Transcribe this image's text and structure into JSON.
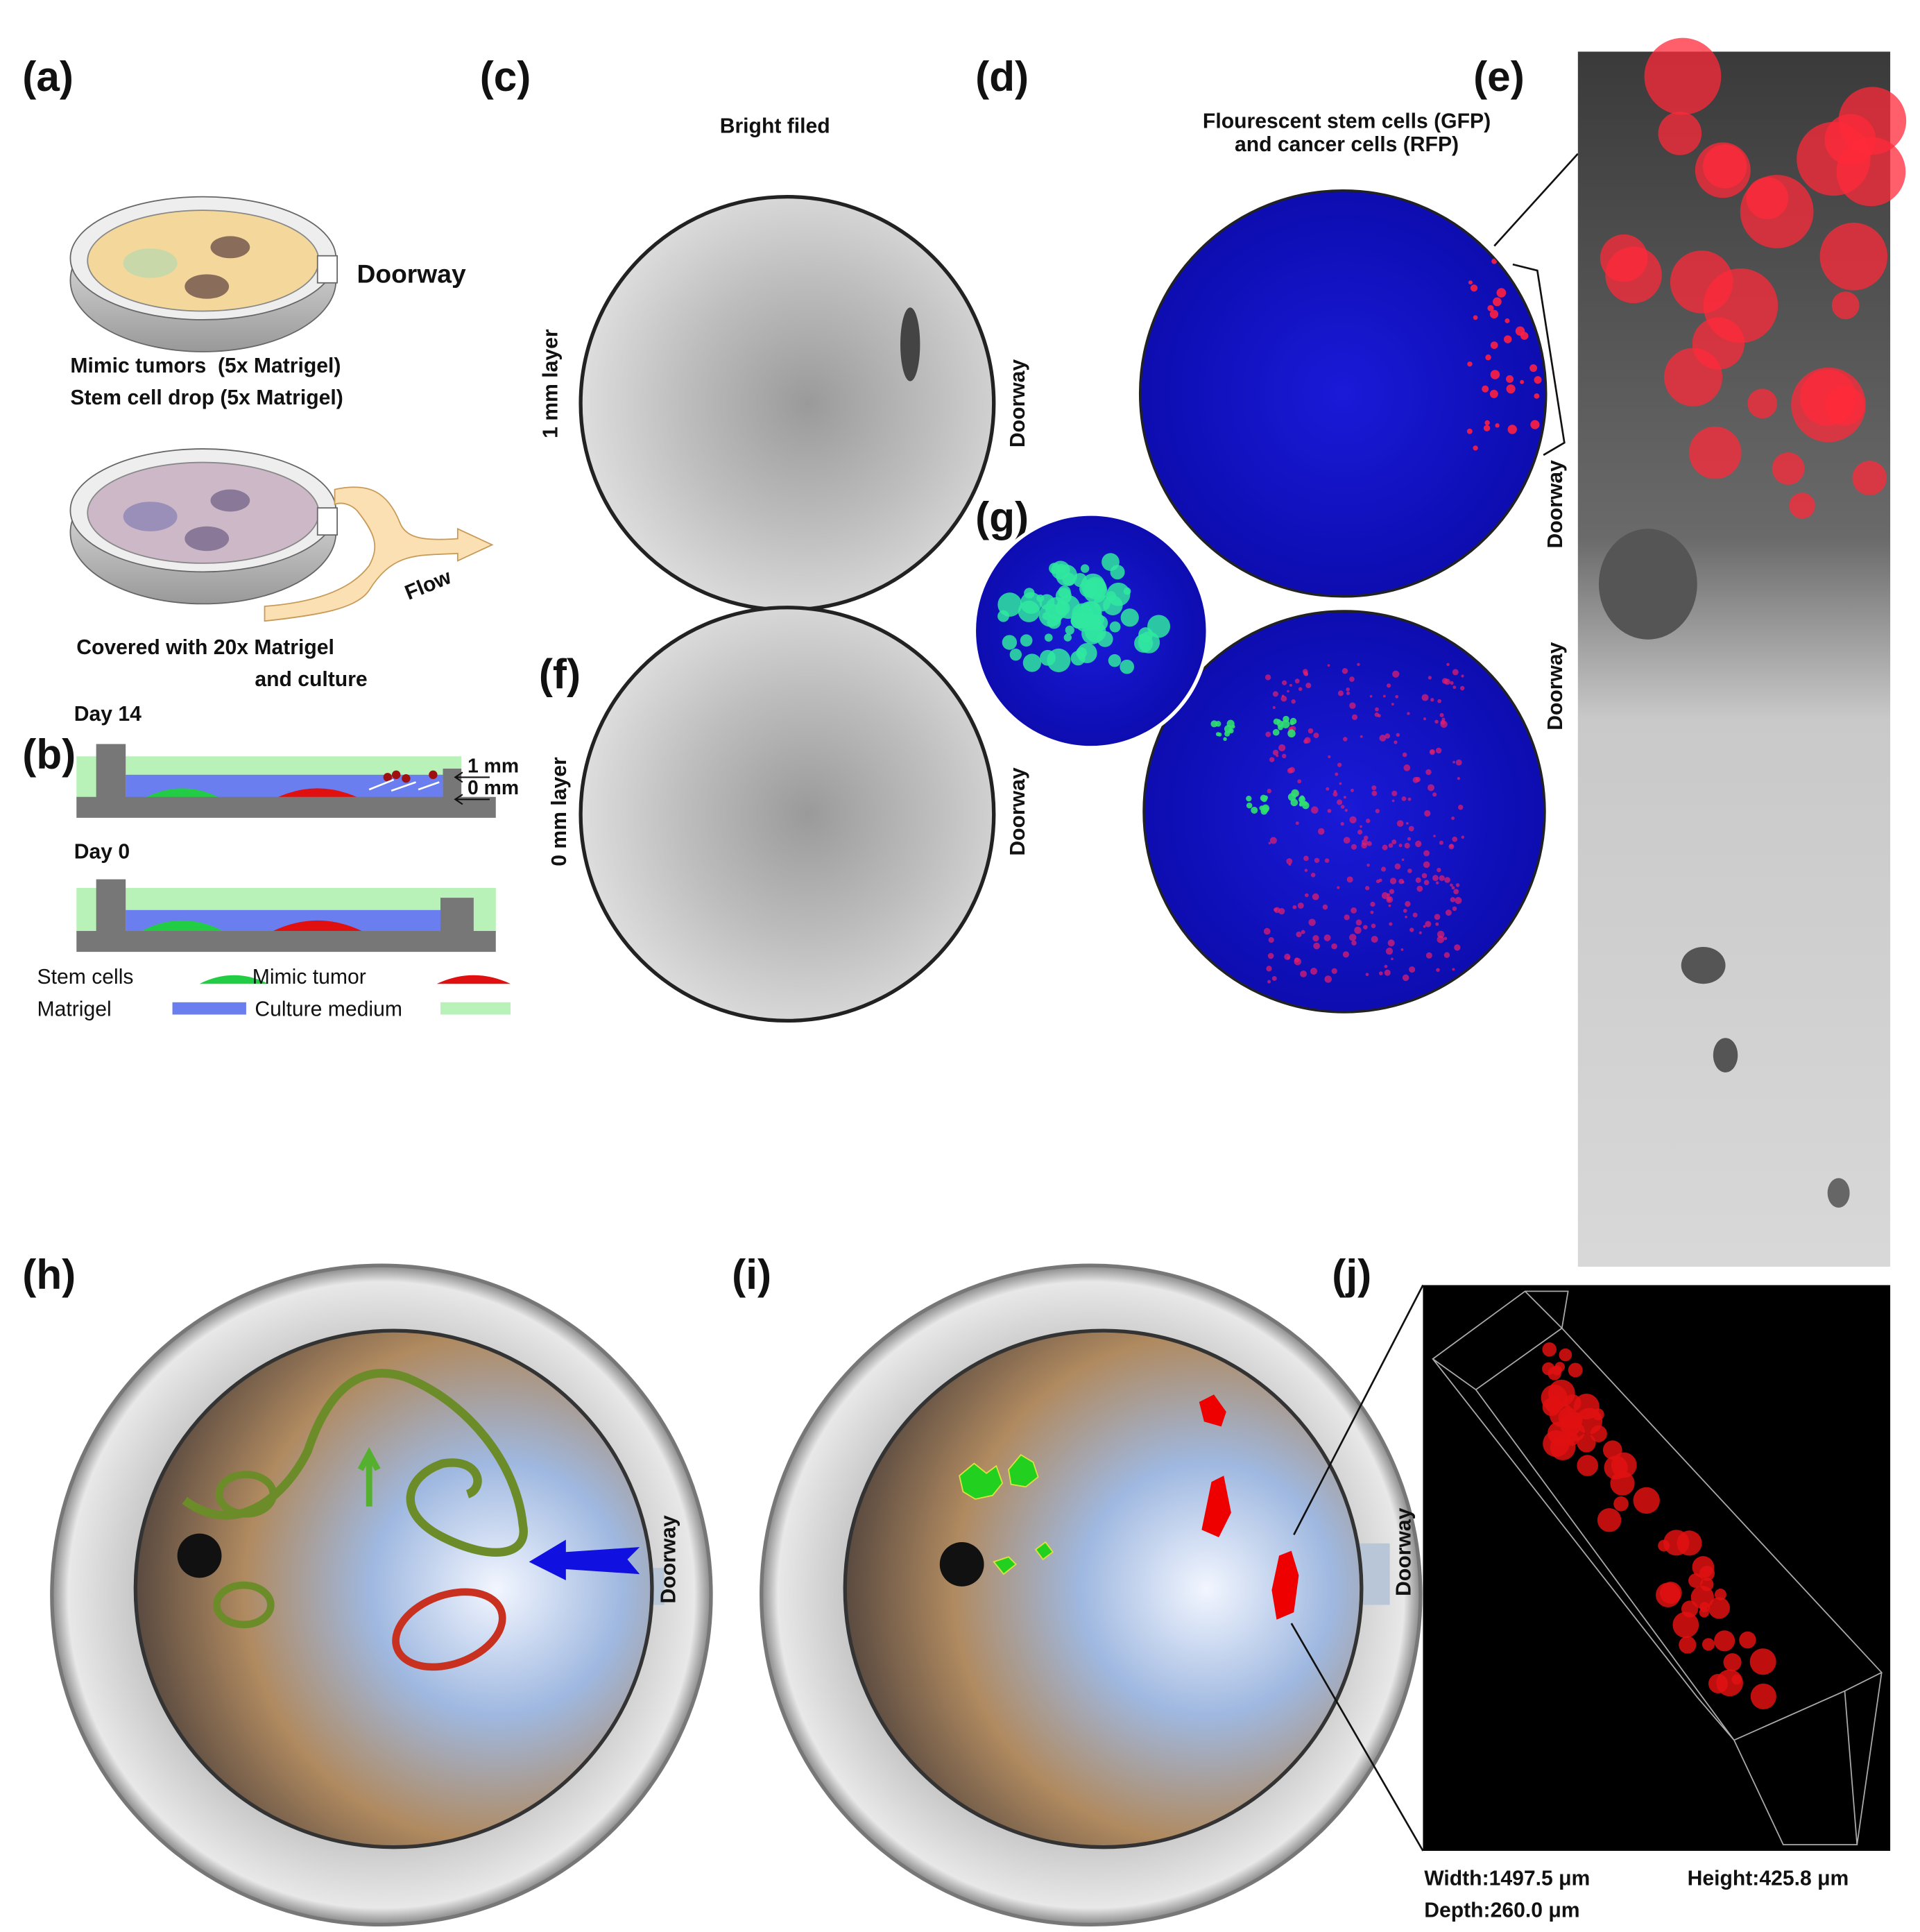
{
  "panel_labels": {
    "a": "(a)",
    "b": "(b)",
    "c": "(c)",
    "d": "(d)",
    "e": "(e)",
    "f": "(f)",
    "g": "(g)",
    "h": "(h)",
    "i": "(i)",
    "j": "(j)"
  },
  "a": {
    "doorway": "Doorway",
    "lines": [
      "Mimic tumors  (5x Matrigel)",
      "Stem cell drop (5x Matrigel)"
    ],
    "flow": "Flow",
    "cover_lines": [
      "Covered with 20x Matrigel",
      "and culture"
    ]
  },
  "b": {
    "day14": "Day 14",
    "layer_1": "1 mm",
    "layer_0": "0 mm",
    "day0": "Day 0",
    "legend": [
      "Stem cells",
      "Mimic tumor",
      "Matrigel",
      "Culture medium"
    ]
  },
  "c": {
    "title": "Bright filed",
    "layer_1": "1 mm layer",
    "doorway": "Doorway"
  },
  "d": {
    "title_lines": [
      "Flourescent stem cells (GFP)",
      "and cancer cells (RFP)"
    ],
    "doorway": "Doorway"
  },
  "e": {
    "doorway": "Doorway"
  },
  "f": {
    "layer_0": "0 mm layer"
  },
  "g": {
    "doorway": "Doorway"
  },
  "h": {
    "doorway": "Doorway"
  },
  "j": {
    "doorway": "Doorway",
    "width": "Width:1497.5 μm",
    "height": "Height:425.8 μm",
    "depth": "Depth:260.0 μm"
  }
}
